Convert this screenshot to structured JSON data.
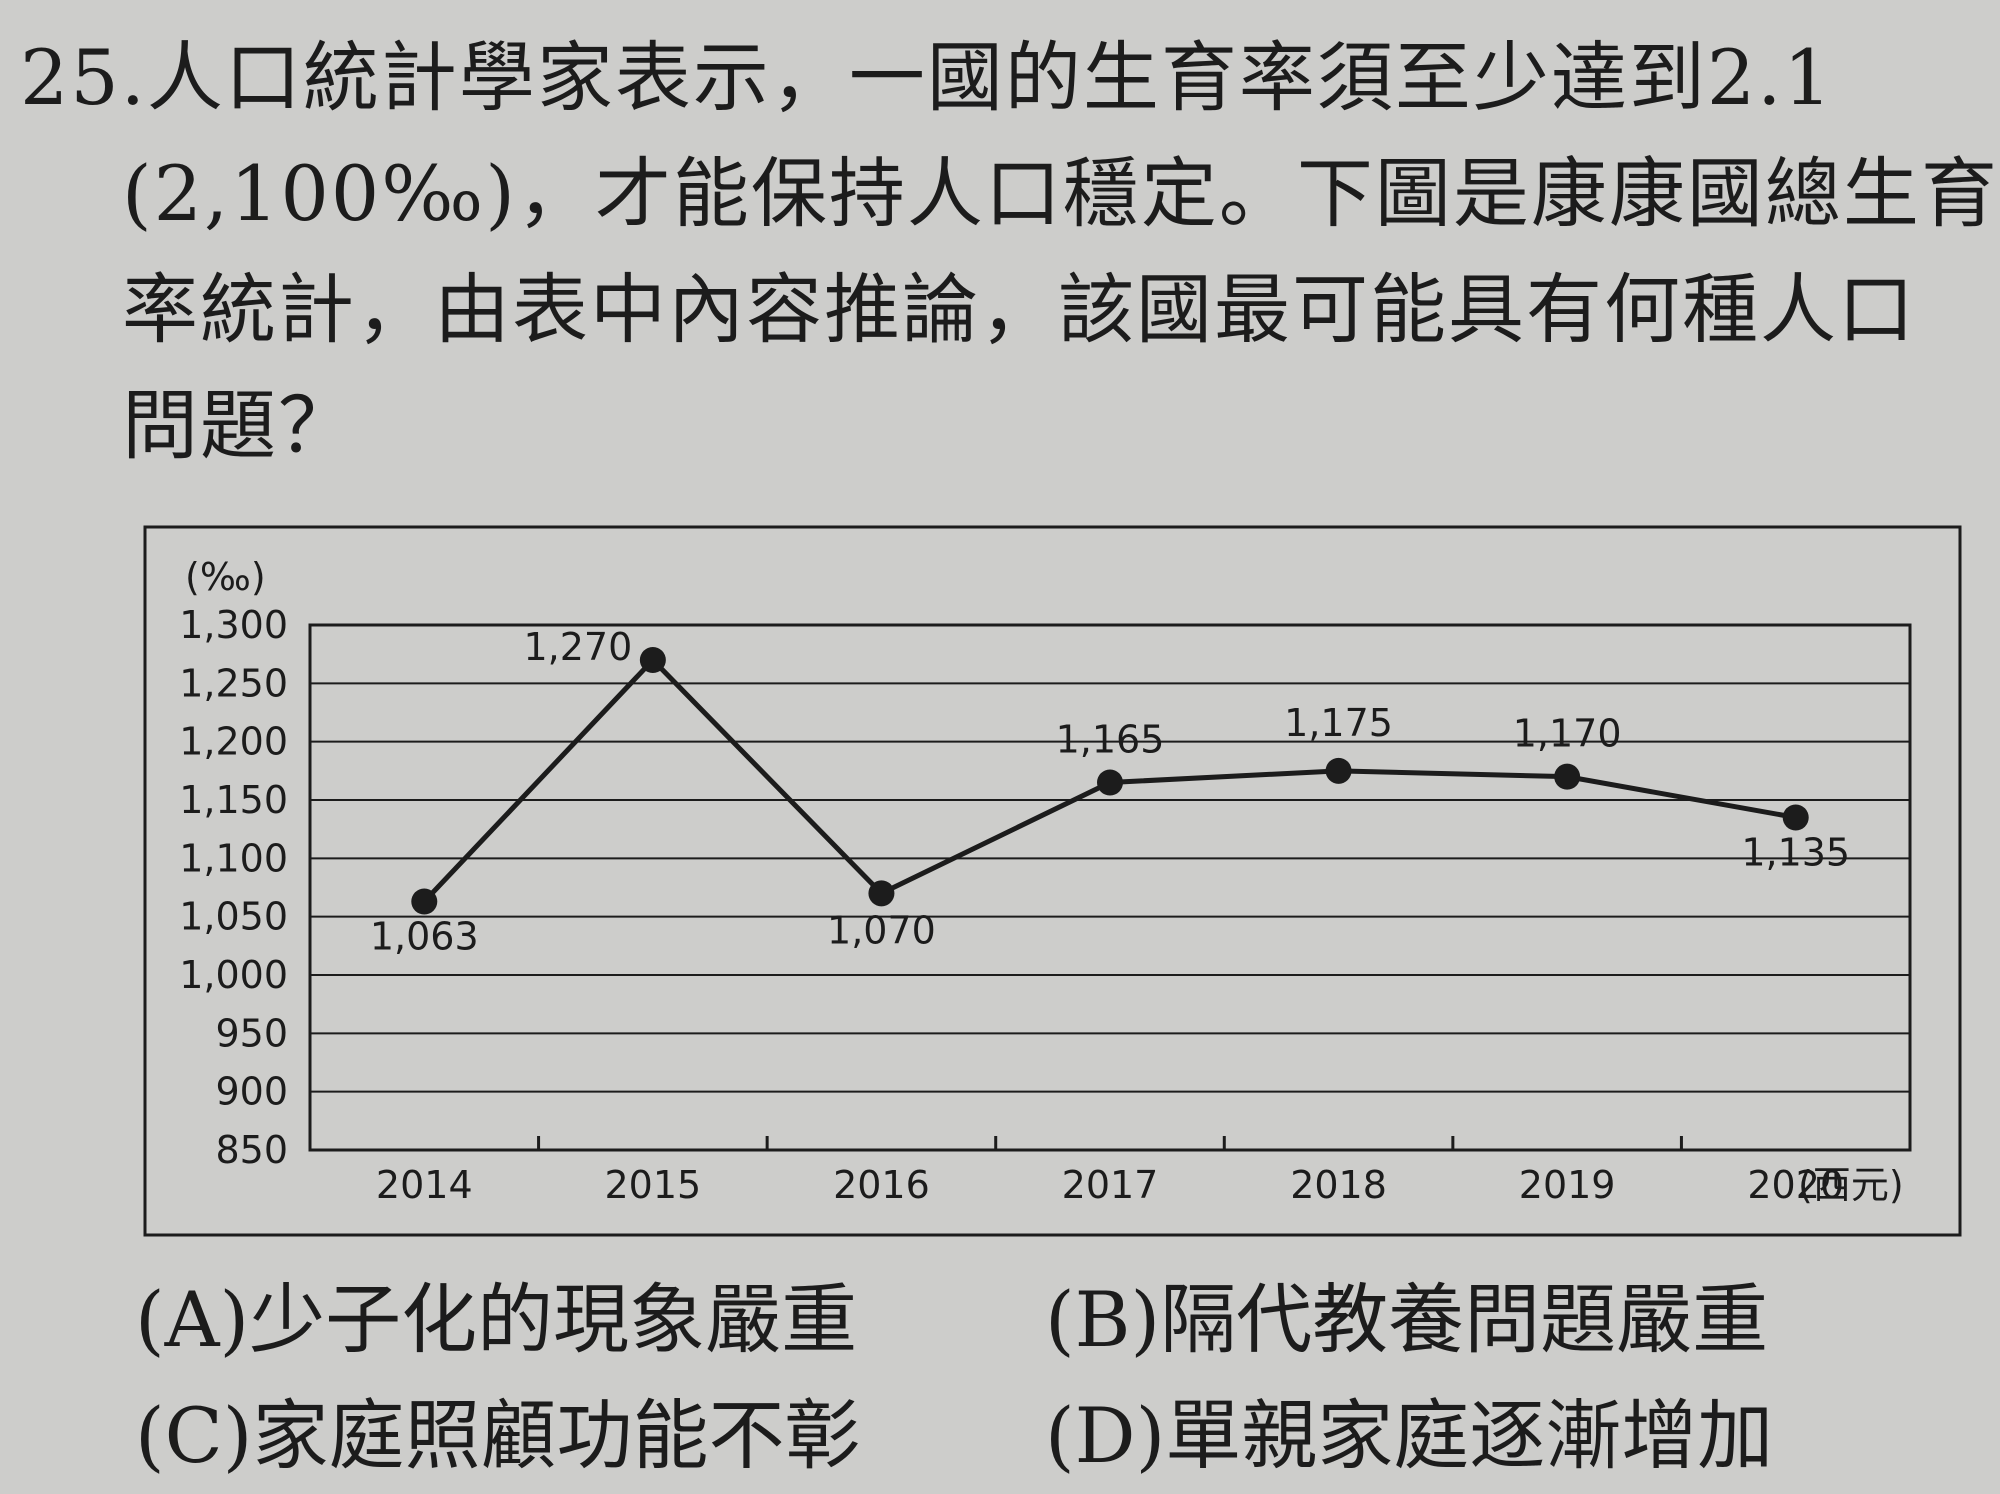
{
  "question": {
    "lines": [
      "25.人口統計學家表示，一國的生育率須至少達到2.1",
      "(2,100‰)，才能保持人口穩定。下圖是康康國總生育",
      "率統計，由表中內容推論，該國最可能具有何種人口",
      "問題？"
    ]
  },
  "chart_data": {
    "type": "line",
    "title": "",
    "ylabel": "(‰)",
    "xlabel": "(西元)",
    "categories": [
      "2014",
      "2015",
      "2016",
      "2017",
      "2018",
      "2019",
      "2020"
    ],
    "values": [
      1063,
      1270,
      1070,
      1165,
      1175,
      1170,
      1135
    ],
    "data_labels": [
      "1,063",
      "1,270",
      "1,070",
      "1,165",
      "1,175",
      "1,170",
      "1,135"
    ],
    "ylim": [
      850,
      1300
    ],
    "yticks": [
      850,
      900,
      950,
      1000,
      1050,
      1100,
      1150,
      1200,
      1250,
      1300
    ],
    "ytick_labels": [
      "850",
      "900",
      "950",
      "1,000",
      "1,050",
      "1,100",
      "1,150",
      "1,200",
      "1,250",
      "1,300"
    ],
    "grid": true,
    "line_color": "#1c1c1c"
  },
  "options": [
    {
      "label": "(A)少子化的現象嚴重"
    },
    {
      "label": "(B)隔代教養問題嚴重"
    },
    {
      "label": "(C)家庭照顧功能不彰"
    },
    {
      "label": "(D)單親家庭逐漸增加"
    }
  ]
}
